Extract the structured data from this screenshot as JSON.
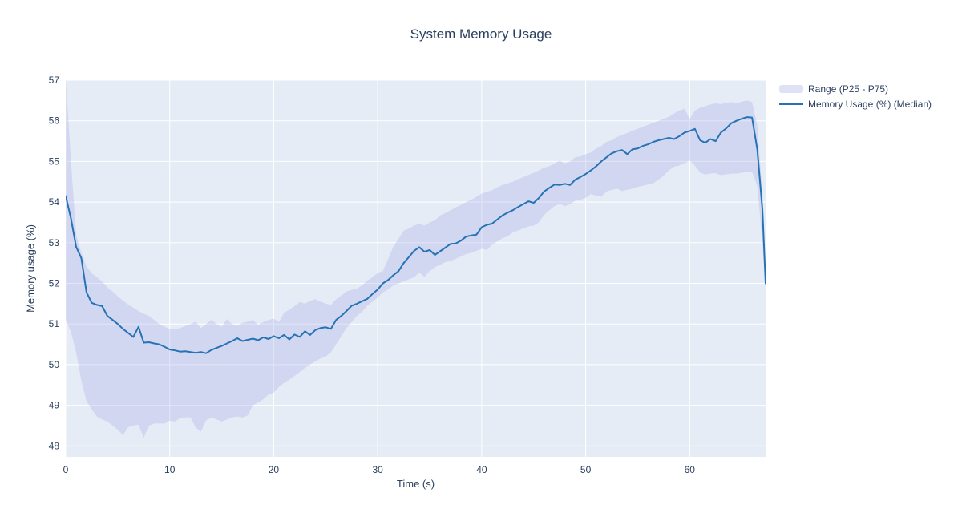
{
  "title": "System Memory Usage",
  "colors": {
    "paper_bg": "#ffffff",
    "plot_bg": "#E5ECF6",
    "grid": "#ffffff",
    "text": "#2a3f5f",
    "line": "#2573b4",
    "band_fill": "rgba(175,178,232,0.35)",
    "band_legend_swatch": "#dfe2f5"
  },
  "legend": {
    "items": [
      {
        "label": "Range (P25 - P75)",
        "type": "band"
      },
      {
        "label": "Memory Usage (%) (Median)",
        "type": "line"
      }
    ]
  },
  "chart_data": {
    "type": "line",
    "title": "System Memory Usage",
    "xlabel": "Time (s)",
    "ylabel": "Memory usage (%)",
    "x_range": [
      0,
      67.3
    ],
    "y_range": [
      47.73,
      57.0
    ],
    "x_ticks": [
      0,
      10,
      20,
      30,
      40,
      50,
      60
    ],
    "y_ticks": [
      48,
      49,
      50,
      51,
      52,
      53,
      54,
      55,
      56,
      57
    ],
    "grid": true,
    "legend_position": "right-outside-top",
    "x": [
      0,
      0.5,
      1,
      1.5,
      2,
      2.5,
      3,
      3.5,
      4,
      4.5,
      5,
      5.5,
      6,
      6.5,
      7,
      7.5,
      8,
      8.5,
      9,
      9.5,
      10,
      10.5,
      11,
      11.5,
      12,
      12.5,
      13,
      13.5,
      14,
      14.5,
      15,
      15.5,
      16,
      16.5,
      17,
      17.5,
      18,
      18.5,
      19,
      19.5,
      20,
      20.5,
      21,
      21.5,
      22,
      22.5,
      23,
      23.5,
      24,
      24.5,
      25,
      25.5,
      26,
      26.5,
      27,
      27.5,
      28,
      28.5,
      29,
      29.5,
      30,
      30.5,
      31,
      31.5,
      32,
      32.5,
      33,
      33.5,
      34,
      34.5,
      35,
      35.5,
      36,
      36.5,
      37,
      37.5,
      38,
      38.5,
      39,
      39.5,
      40,
      40.5,
      41,
      41.5,
      42,
      42.5,
      43,
      43.5,
      44,
      44.5,
      45,
      45.5,
      46,
      46.5,
      47,
      47.5,
      48,
      48.5,
      49,
      49.5,
      50,
      50.5,
      51,
      51.5,
      52,
      52.5,
      53,
      53.5,
      54,
      54.5,
      55,
      55.5,
      56,
      56.5,
      57,
      57.5,
      58,
      58.5,
      59,
      59.5,
      60,
      60.5,
      61,
      61.5,
      62,
      62.5,
      63,
      63.5,
      64,
      64.5,
      65,
      65.5,
      66,
      66.5,
      67,
      67.3
    ],
    "series": [
      {
        "name": "Range (P25 - P75)",
        "type": "band",
        "p25": [
          51.1,
          50.8,
          50.3,
          49.6,
          49.1,
          48.9,
          48.72,
          48.65,
          48.6,
          48.5,
          48.4,
          48.26,
          48.46,
          48.5,
          48.52,
          48.2,
          48.5,
          48.55,
          48.55,
          48.55,
          48.62,
          48.6,
          48.68,
          48.7,
          48.7,
          48.45,
          48.35,
          48.63,
          48.7,
          48.65,
          48.6,
          48.65,
          48.7,
          48.72,
          48.7,
          48.75,
          49.0,
          49.07,
          49.15,
          49.26,
          49.31,
          49.45,
          49.55,
          49.63,
          49.72,
          49.82,
          49.92,
          50.0,
          50.08,
          50.15,
          50.2,
          50.3,
          50.5,
          50.7,
          50.9,
          51.05,
          51.2,
          51.3,
          51.45,
          51.55,
          51.65,
          51.78,
          51.85,
          51.95,
          52.0,
          52.05,
          52.1,
          52.15,
          52.26,
          52.16,
          52.3,
          52.4,
          52.46,
          52.52,
          52.55,
          52.6,
          52.66,
          52.72,
          52.75,
          52.8,
          52.85,
          52.82,
          52.95,
          53.03,
          53.11,
          53.16,
          53.25,
          53.3,
          53.35,
          53.4,
          53.42,
          53.5,
          53.68,
          53.8,
          53.9,
          53.96,
          53.9,
          53.95,
          54.03,
          54.06,
          54.1,
          54.2,
          54.16,
          54.13,
          54.26,
          54.3,
          54.33,
          54.27,
          54.3,
          54.33,
          54.37,
          54.4,
          54.43,
          54.46,
          54.55,
          54.65,
          54.78,
          54.87,
          54.9,
          54.95,
          55.02,
          54.9,
          54.72,
          54.68,
          54.7,
          54.71,
          54.66,
          54.68,
          54.7,
          54.7,
          54.72,
          54.74,
          54.75,
          54.4,
          53.0,
          51.9
        ],
        "p75": [
          57.1,
          55.0,
          53.2,
          52.75,
          52.42,
          52.25,
          52.15,
          52.05,
          51.9,
          51.8,
          51.68,
          51.58,
          51.48,
          51.4,
          51.32,
          51.25,
          51.2,
          51.1,
          51.0,
          50.93,
          50.88,
          50.86,
          50.9,
          50.95,
          51.0,
          51.06,
          50.9,
          51.0,
          51.1,
          51.0,
          50.93,
          51.12,
          51.0,
          50.95,
          51.03,
          51.06,
          51.1,
          50.98,
          51.05,
          51.1,
          51.13,
          51.05,
          51.28,
          51.35,
          51.44,
          51.54,
          51.5,
          51.57,
          51.61,
          51.55,
          51.5,
          51.47,
          51.61,
          51.7,
          51.8,
          51.84,
          51.87,
          51.95,
          52.07,
          52.15,
          52.26,
          52.3,
          52.6,
          52.9,
          53.1,
          53.3,
          53.35,
          53.42,
          53.47,
          53.42,
          53.5,
          53.55,
          53.67,
          53.73,
          53.8,
          53.87,
          53.93,
          54.0,
          54.06,
          54.13,
          54.21,
          54.25,
          54.29,
          54.36,
          54.42,
          54.46,
          54.5,
          54.56,
          54.62,
          54.67,
          54.72,
          54.78,
          54.85,
          54.88,
          54.95,
          55.02,
          54.95,
          55.0,
          55.1,
          55.12,
          55.18,
          55.22,
          55.32,
          55.38,
          55.48,
          55.52,
          55.6,
          55.65,
          55.7,
          55.76,
          55.8,
          55.85,
          55.9,
          55.95,
          56.0,
          56.05,
          56.1,
          56.18,
          56.25,
          56.3,
          56.05,
          56.25,
          56.32,
          56.36,
          56.4,
          56.43,
          56.41,
          56.44,
          56.46,
          56.43,
          56.47,
          56.5,
          56.46,
          55.9,
          54.2,
          52.3
        ]
      },
      {
        "name": "Memory Usage (%) (Median)",
        "type": "line",
        "y": [
          54.15,
          53.6,
          52.9,
          52.62,
          51.78,
          51.52,
          51.47,
          51.44,
          51.2,
          51.1,
          51.0,
          50.88,
          50.78,
          50.68,
          50.93,
          50.54,
          50.55,
          50.52,
          50.5,
          50.44,
          50.37,
          50.35,
          50.32,
          50.33,
          50.31,
          50.29,
          50.31,
          50.28,
          50.36,
          50.41,
          50.46,
          50.52,
          50.58,
          50.65,
          50.58,
          50.61,
          50.64,
          50.6,
          50.67,
          50.63,
          50.7,
          50.65,
          50.73,
          50.62,
          50.74,
          50.68,
          50.82,
          50.73,
          50.85,
          50.9,
          50.92,
          50.88,
          51.1,
          51.2,
          51.32,
          51.45,
          51.5,
          51.56,
          51.62,
          51.74,
          51.85,
          52.0,
          52.08,
          52.2,
          52.3,
          52.5,
          52.65,
          52.8,
          52.89,
          52.78,
          52.82,
          52.7,
          52.79,
          52.88,
          52.97,
          52.98,
          53.05,
          53.15,
          53.18,
          53.2,
          53.38,
          53.44,
          53.47,
          53.57,
          53.67,
          53.74,
          53.8,
          53.88,
          53.95,
          54.02,
          53.98,
          54.1,
          54.26,
          54.35,
          54.43,
          54.42,
          54.45,
          54.42,
          54.55,
          54.62,
          54.69,
          54.78,
          54.88,
          55.0,
          55.1,
          55.2,
          55.25,
          55.28,
          55.18,
          55.3,
          55.32,
          55.38,
          55.42,
          55.48,
          55.52,
          55.55,
          55.58,
          55.55,
          55.62,
          55.71,
          55.75,
          55.8,
          55.52,
          55.46,
          55.55,
          55.5,
          55.71,
          55.81,
          55.94,
          56.0,
          56.05,
          56.09,
          56.08,
          55.3,
          53.8,
          52.0
        ]
      }
    ]
  }
}
